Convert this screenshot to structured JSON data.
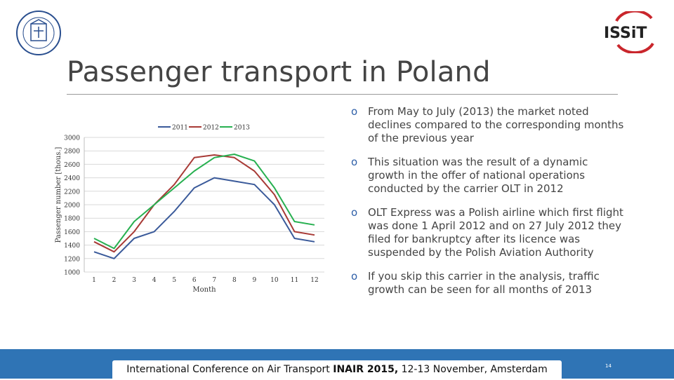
{
  "slide": {
    "title": "Passenger transport in Poland",
    "page_number": "14"
  },
  "logos": {
    "right_text": "ISSiT"
  },
  "bullets": [
    "From May to July (2013) the market noted declines compared to the corresponding months of the previous year",
    "This situation was the result of a dynamic growth in the offer of national operations conducted by the carrier OLT in 2012",
    "OLT Express was a Polish airline which first flight was done 1 April 2012 and on 27 July 2012 they filed for bankruptcy after its licence was suspended by the Polish Aviation Authority",
    "If you skip this carrier in the analysis, traffic growth can be seen for all months of 2013"
  ],
  "bullet_marker": "o",
  "footer": {
    "part1": "International Conference on Air Transport ",
    "part2": "INAIR 2015,",
    "part3": " 12-13 November, Amsterdam"
  },
  "colors": {
    "footer_bar": "#2f74b5",
    "series_2011": "#3a5a9a",
    "series_2012": "#a83a36",
    "series_2013": "#27b050"
  },
  "chart_data": {
    "type": "line",
    "title": "",
    "xlabel": "Month",
    "ylabel": "Passenger number [thous.]",
    "x": [
      1,
      2,
      3,
      4,
      5,
      6,
      7,
      8,
      9,
      10,
      11,
      12
    ],
    "ylim": [
      1000,
      3000
    ],
    "yticks": [
      1000,
      1200,
      1400,
      1600,
      1800,
      2000,
      2200,
      2400,
      2600,
      2800,
      3000
    ],
    "legend_position": "top",
    "series": [
      {
        "name": "2011",
        "color": "#3a5a9a",
        "values": [
          1300,
          1200,
          1500,
          1600,
          1900,
          2250,
          2400,
          2350,
          2300,
          2000,
          1500,
          1450
        ]
      },
      {
        "name": "2012",
        "color": "#a83a36",
        "values": [
          1450,
          1300,
          1600,
          2000,
          2300,
          2700,
          2740,
          2700,
          2500,
          2150,
          1600,
          1550
        ]
      },
      {
        "name": "2013",
        "color": "#27b050",
        "values": [
          1500,
          1350,
          1750,
          2000,
          2250,
          2500,
          2700,
          2750,
          2650,
          2250,
          1750,
          1700
        ]
      }
    ]
  }
}
